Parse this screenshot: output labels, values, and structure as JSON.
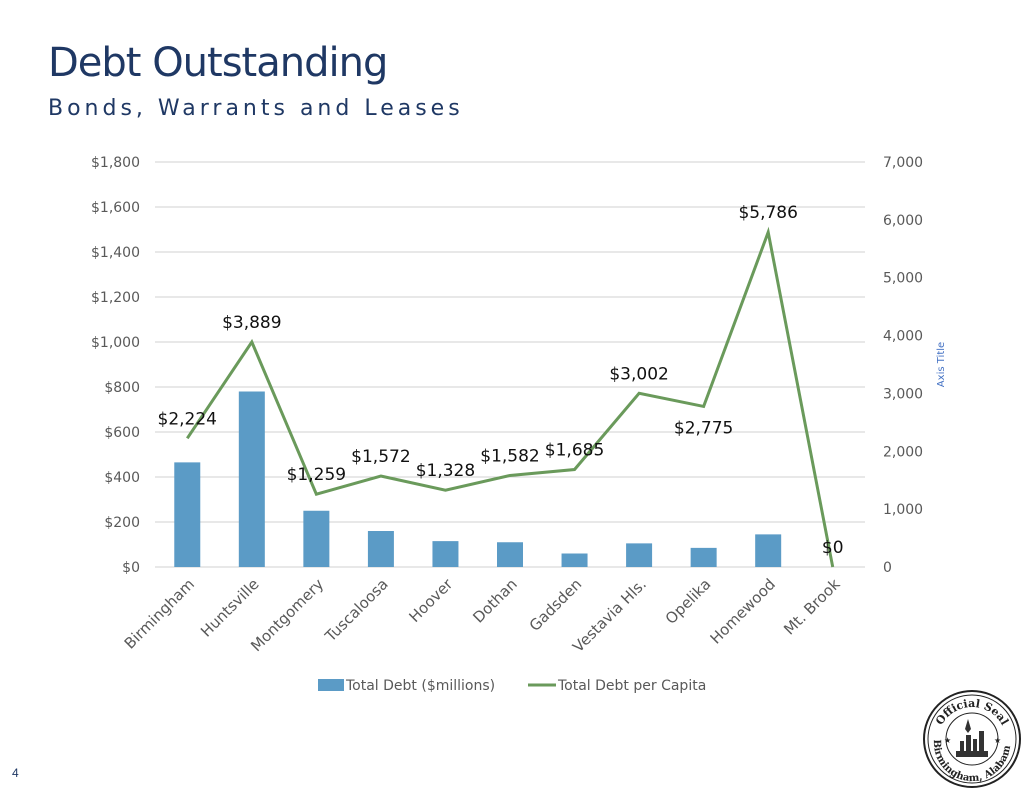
{
  "slide": {
    "title": "Debt Outstanding",
    "subtitle": "Bonds, Warrants and Leases",
    "page_number": "4",
    "seal_text_top": "Official Seal",
    "seal_text_bottom": "Birmingham, Alabama"
  },
  "colors": {
    "title": "#1f3864",
    "bar": "#5b9bc6",
    "line": "#6a9a5b",
    "grid": "#d0d0d0",
    "axis_text": "#595959",
    "secondary_axis_title": "#4472c4"
  },
  "chart_data": {
    "type": "bar",
    "categories": [
      "Birmingham",
      "Huntsville",
      "Montgomery",
      "Tuscaloosa",
      "Hoover",
      "Dothan",
      "Gadsden",
      "Vestavia Hls.",
      "Opelika",
      "Homewood",
      "Mt. Brook"
    ],
    "series": [
      {
        "name": "Total Debt ($millions)",
        "type": "bar",
        "axis": "left",
        "values": [
          465,
          780,
          250,
          160,
          115,
          110,
          60,
          105,
          85,
          145,
          0
        ]
      },
      {
        "name": "Total Debt per Capita",
        "type": "line",
        "axis": "right",
        "values": [
          2224,
          3889,
          1259,
          1572,
          1328,
          1582,
          1685,
          3002,
          2775,
          5786,
          0
        ],
        "data_labels": [
          "$2,224",
          "$3,889",
          "$1,259",
          "$1,572",
          "$1,328",
          "$1,582",
          "$1,685",
          "$3,002",
          "$2,775",
          "$5,786",
          "$0"
        ]
      }
    ],
    "y_left": {
      "range": [
        0,
        1800
      ],
      "ticks": [
        0,
        200,
        400,
        600,
        800,
        1000,
        1200,
        1400,
        1600,
        1800
      ],
      "tick_labels": [
        "$0",
        "$200",
        "$400",
        "$600",
        "$800",
        "$1,000",
        "$1,200",
        "$1,400",
        "$1,600",
        "$1,800"
      ]
    },
    "y_right": {
      "range": [
        0,
        7000
      ],
      "ticks": [
        0,
        1000,
        2000,
        3000,
        4000,
        5000,
        6000,
        7000
      ],
      "tick_labels": [
        "0",
        "1,000",
        "2,000",
        "3,000",
        "4,000",
        "5,000",
        "6,000",
        "7,000"
      ],
      "title": "Axis Title"
    },
    "grid": true,
    "legend": "bottom"
  }
}
